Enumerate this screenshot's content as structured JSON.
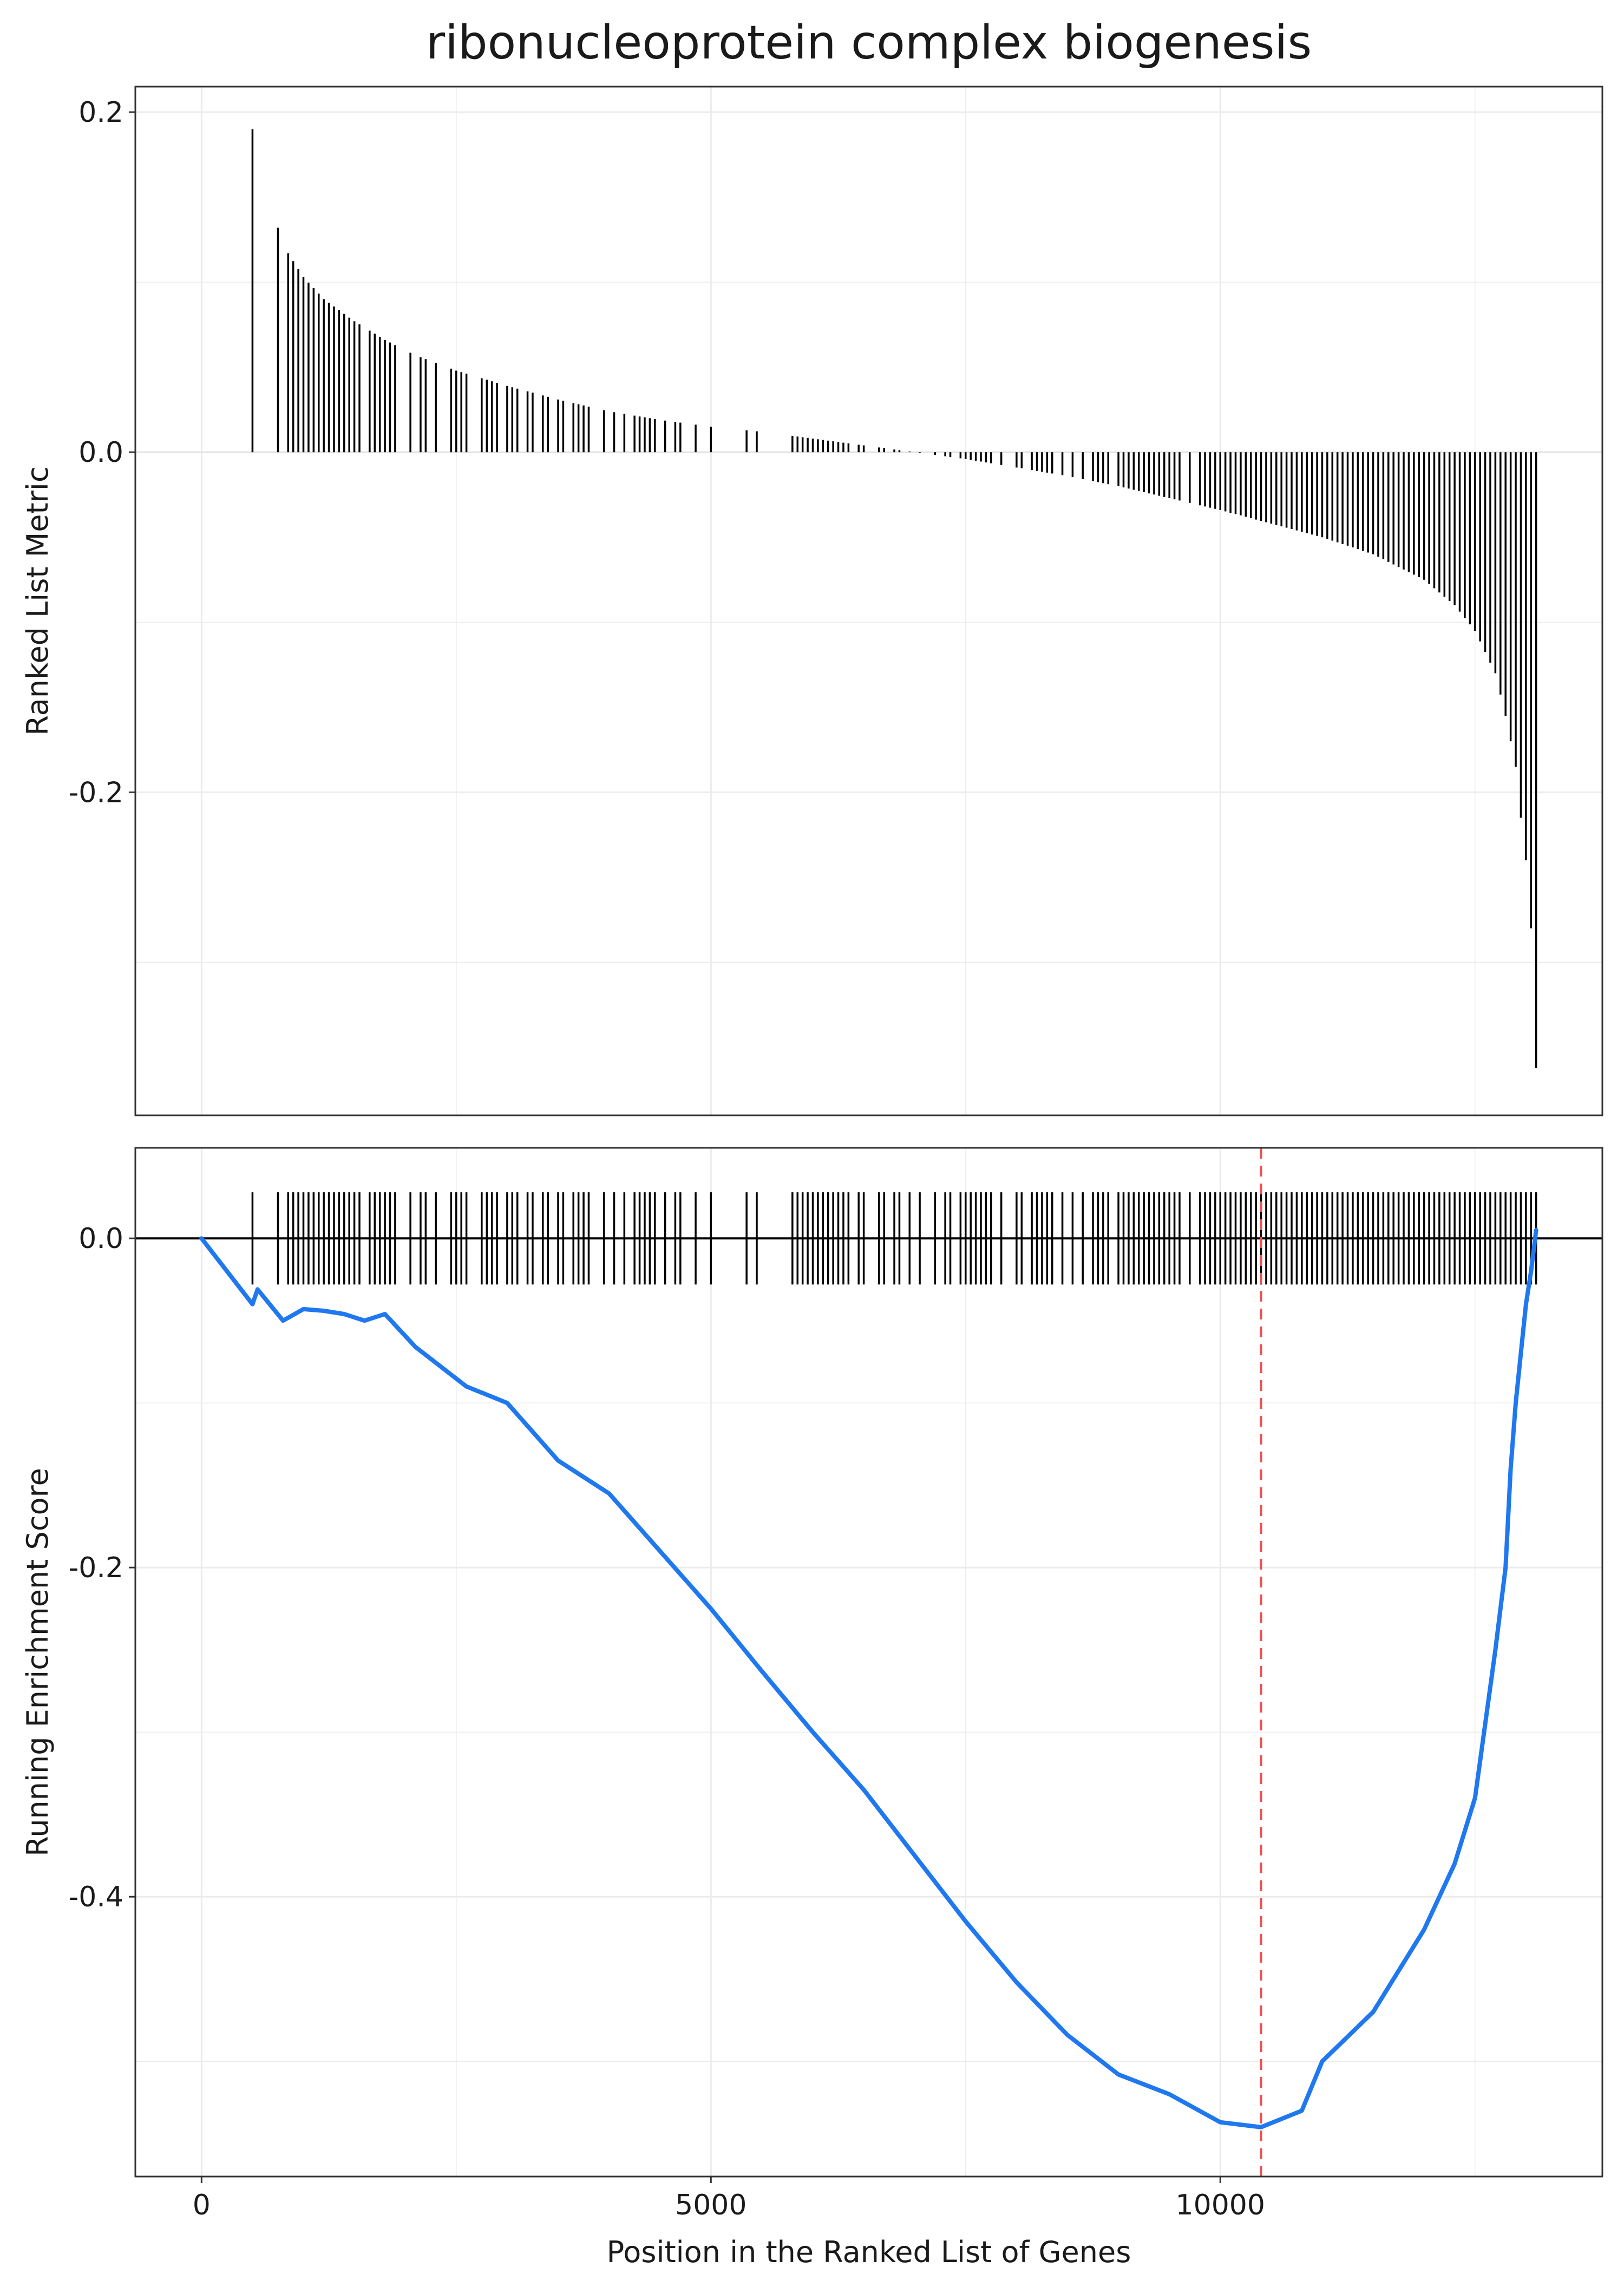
{
  "title": "ribonucleoprotein complex biogenesis",
  "colors": {
    "curve": "#1f78f0",
    "bars": "#000000",
    "hits": "#000000",
    "peak_line": "#f05050",
    "grid": "#ebebeb",
    "panel_border": "#333333"
  },
  "chart_data": [
    {
      "type": "bar",
      "panel": "top",
      "title": "ribonucleoprotein complex biogenesis",
      "xlabel": "",
      "ylabel": "Ranked List Metric",
      "xlim": [
        -650,
        13750
      ],
      "ylim": [
        -0.39,
        0.215
      ],
      "yticks": [
        0.2,
        0.0,
        -0.2
      ],
      "ytick_labels": [
        "0.2",
        "0.0",
        "-0.2"
      ],
      "grid": true,
      "legend": "none",
      "hit_positions": [
        500,
        750,
        850,
        900,
        950,
        1000,
        1050,
        1100,
        1150,
        1200,
        1250,
        1300,
        1350,
        1400,
        1450,
        1500,
        1550,
        1650,
        1700,
        1750,
        1800,
        1850,
        1900,
        2050,
        2150,
        2200,
        2300,
        2450,
        2500,
        2550,
        2600,
        2750,
        2800,
        2850,
        2900,
        3000,
        3050,
        3100,
        3200,
        3250,
        3350,
        3400,
        3500,
        3550,
        3650,
        3700,
        3750,
        3800,
        3950,
        4050,
        4150,
        4250,
        4300,
        4350,
        4400,
        4450,
        4550,
        4650,
        4700,
        4850,
        5000,
        5350,
        5450,
        5800,
        5850,
        5900,
        5950,
        6000,
        6050,
        6100,
        6150,
        6200,
        6250,
        6300,
        6350,
        6450,
        6500,
        6650,
        6700,
        6800,
        6850,
        6950,
        7050,
        7200,
        7300,
        7350,
        7450,
        7500,
        7550,
        7600,
        7650,
        7700,
        7750,
        7850,
        8000,
        8050,
        8150,
        8200,
        8250,
        8300,
        8350,
        8450,
        8550,
        8650,
        8750,
        8800,
        8850,
        8900,
        9000,
        9050,
        9100,
        9150,
        9200,
        9250,
        9300,
        9350,
        9400,
        9450,
        9500,
        9550,
        9600,
        9700,
        9800,
        9850,
        9900,
        9950,
        10000,
        10050,
        10100,
        10150,
        10200,
        10250,
        10300,
        10350,
        10400,
        10450,
        10500,
        10550,
        10600,
        10650,
        10700,
        10750,
        10800,
        10850,
        10900,
        10950,
        11000,
        11050,
        11100,
        11150,
        11200,
        11250,
        11300,
        11350,
        11400,
        11450,
        11500,
        11550,
        11600,
        11650,
        11700,
        11750,
        11800,
        11850,
        11900,
        11950,
        12000,
        12050,
        12100,
        12150,
        12200,
        12250,
        12300,
        12350,
        12400,
        12450,
        12500,
        12550,
        12600,
        12650,
        12700,
        12750,
        12800,
        12850,
        12900,
        12950,
        13000,
        13050,
        13100
      ],
      "ranked_metric_knots": [
        [
          500,
          0.19
        ],
        [
          750,
          0.132
        ],
        [
          850,
          0.117
        ],
        [
          1000,
          0.103
        ],
        [
          1200,
          0.09
        ],
        [
          1500,
          0.077
        ],
        [
          1800,
          0.066
        ],
        [
          2100,
          0.057
        ],
        [
          2500,
          0.048
        ],
        [
          3000,
          0.039
        ],
        [
          3500,
          0.031
        ],
        [
          4000,
          0.024
        ],
        [
          4500,
          0.019
        ],
        [
          5000,
          0.015
        ],
        [
          5500,
          0.012
        ],
        [
          6000,
          0.008
        ],
        [
          6500,
          0.004
        ],
        [
          7000,
          0.0
        ],
        [
          7500,
          -0.004
        ],
        [
          8000,
          -0.009
        ],
        [
          8500,
          -0.014
        ],
        [
          9000,
          -0.02
        ],
        [
          9500,
          -0.027
        ],
        [
          10000,
          -0.034
        ],
        [
          10500,
          -0.042
        ],
        [
          11000,
          -0.05
        ],
        [
          11500,
          -0.06
        ],
        [
          12000,
          -0.075
        ],
        [
          12300,
          -0.09
        ],
        [
          12500,
          -0.105
        ],
        [
          12700,
          -0.13
        ],
        [
          12800,
          -0.155
        ],
        [
          12900,
          -0.185
        ],
        [
          12950,
          -0.215
        ],
        [
          13000,
          -0.24
        ],
        [
          13050,
          -0.28
        ],
        [
          13100,
          -0.362
        ]
      ]
    },
    {
      "type": "line",
      "panel": "bottom",
      "xlabel": "Position in the Ranked List of Genes",
      "ylabel": "Running Enrichment Score",
      "xlim": [
        -650,
        13750
      ],
      "ylim": [
        -0.57,
        0.055
      ],
      "xticks": [
        0,
        5000,
        10000
      ],
      "xtick_labels": [
        "0",
        "5000",
        "10000"
      ],
      "yticks": [
        0.0,
        -0.2,
        -0.4
      ],
      "ytick_labels": [
        "0.0",
        "-0.2",
        "-0.4"
      ],
      "grid": true,
      "legend": "none",
      "peak_position": 10400,
      "hit_band": [
        -0.028,
        0.028
      ],
      "series": [
        {
          "x": [
            0,
            500,
            550,
            800,
            1000,
            1200,
            1400,
            1600,
            1800,
            2100,
            2600,
            3000,
            3500,
            4000,
            4500,
            5000,
            5500,
            6000,
            6500,
            7000,
            7500,
            8000,
            8500,
            9000,
            9500,
            10000,
            10400,
            10800,
            11000,
            11500,
            12000,
            12300,
            12500,
            12700,
            12800,
            12850,
            12900,
            12950,
            13000,
            13050,
            13100
          ],
          "y": [
            0.0,
            -0.04,
            -0.031,
            -0.05,
            -0.043,
            -0.044,
            -0.046,
            -0.05,
            -0.046,
            -0.066,
            -0.09,
            -0.1,
            -0.135,
            -0.155,
            -0.19,
            -0.225,
            -0.263,
            -0.3,
            -0.335,
            -0.375,
            -0.415,
            -0.452,
            -0.484,
            -0.508,
            -0.52,
            -0.537,
            -0.54,
            -0.53,
            -0.5,
            -0.47,
            -0.42,
            -0.38,
            -0.34,
            -0.25,
            -0.2,
            -0.14,
            -0.1,
            -0.07,
            -0.04,
            -0.02,
            0.005
          ]
        }
      ]
    }
  ]
}
